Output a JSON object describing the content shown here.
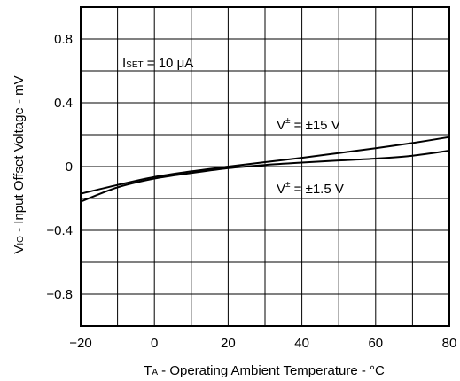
{
  "chart_data": {
    "type": "line",
    "title": "",
    "xlabel": {
      "main": "T",
      "sub": "A",
      "rest": " - Operating Ambient Temperature - °C"
    },
    "ylabel": {
      "main": "V",
      "sub": "IO",
      "rest": " - Input Offset Voltage - mV"
    },
    "xlim": [
      -20,
      80
    ],
    "ylim": [
      -1.0,
      1.0
    ],
    "x_ticks": [
      -20,
      0,
      20,
      40,
      60,
      80
    ],
    "x_tick_labels": [
      "−20",
      "0",
      "20",
      "40",
      "60",
      "80"
    ],
    "y_ticks": [
      -0.8,
      -0.4,
      0,
      0.4,
      0.8
    ],
    "y_tick_labels": [
      "−0.8",
      "−0.4",
      "0",
      "0.4",
      "0.8"
    ],
    "x_grid_step": 10,
    "y_grid_step": 0.2,
    "grid": true,
    "series": [
      {
        "name": "V± = ±15 V",
        "x": [
          -20,
          -10,
          0,
          10,
          20,
          30,
          40,
          50,
          60,
          70,
          80
        ],
        "y": [
          -0.17,
          -0.115,
          -0.065,
          -0.03,
          0.0,
          0.028,
          0.055,
          0.085,
          0.115,
          0.148,
          0.185
        ]
      },
      {
        "name": "V± = ±1.5 V",
        "x": [
          -20,
          -10,
          0,
          10,
          20,
          30,
          40,
          50,
          60,
          70,
          80
        ],
        "y": [
          -0.22,
          -0.13,
          -0.075,
          -0.04,
          -0.01,
          0.01,
          0.025,
          0.038,
          0.05,
          0.068,
          0.1
        ]
      }
    ],
    "annotations": [
      {
        "id": "iset",
        "main": "I",
        "sub": "SET",
        "rest": " = 10 μA"
      },
      {
        "id": "v15",
        "main": "V",
        "sup": "±",
        "rest": " = ±15 V"
      },
      {
        "id": "v1_5",
        "main": "V",
        "sup": "±",
        "rest": " = ±1.5 V"
      }
    ]
  }
}
